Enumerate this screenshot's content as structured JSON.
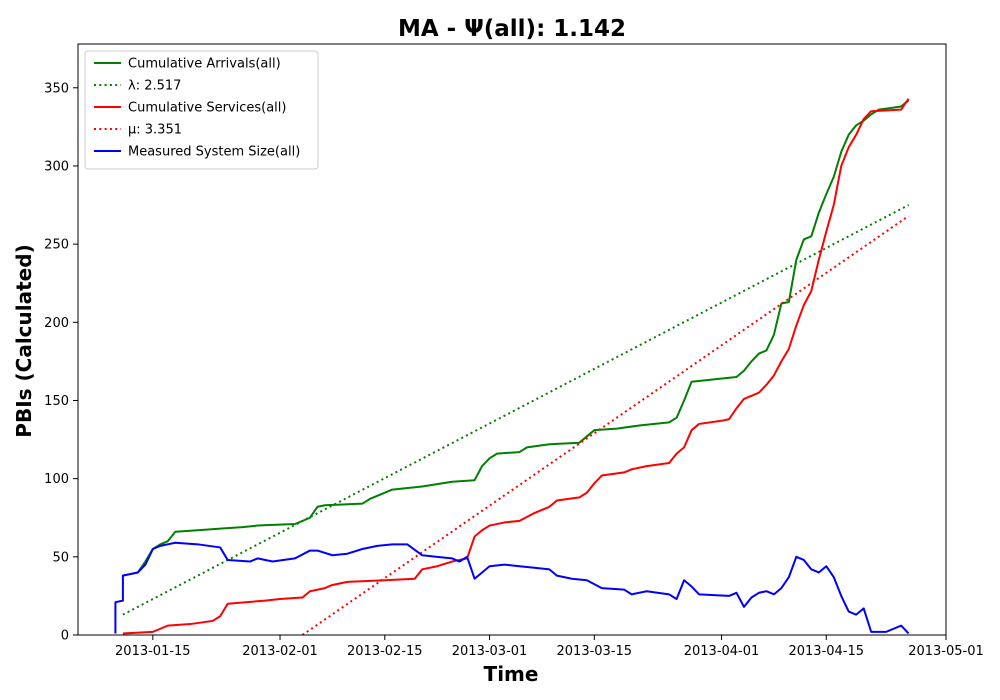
{
  "chart_data": {
    "type": "line",
    "title": "MA -  Ψ(all): 1.142",
    "xlabel": "Time",
    "ylabel": "PBIs (Calculated)",
    "xlim": [
      "2013-01-05",
      "2013-05-01"
    ],
    "ylim": [
      0,
      378
    ],
    "x_ticks": [
      "2013-01-15",
      "2013-02-01",
      "2013-02-15",
      "2013-03-01",
      "2013-03-15",
      "2013-04-01",
      "2013-04-15",
      "2013-05-01"
    ],
    "y_ticks": [
      0,
      50,
      100,
      150,
      200,
      250,
      300,
      350
    ],
    "grid": false,
    "legend_position": "top-left",
    "series": [
      {
        "name": "Cumulative Arrivals(all)",
        "style": "solid",
        "color": "#008000",
        "points": [
          [
            "2013-01-11",
            38
          ],
          [
            "2013-01-13",
            40
          ],
          [
            "2013-01-14",
            47
          ],
          [
            "2013-01-15",
            55
          ],
          [
            "2013-01-16",
            58
          ],
          [
            "2013-01-17",
            60
          ],
          [
            "2013-01-18",
            66
          ],
          [
            "2013-01-21",
            67
          ],
          [
            "2013-01-24",
            68
          ],
          [
            "2013-01-27",
            69
          ],
          [
            "2013-01-29",
            70
          ],
          [
            "2013-02-03",
            71
          ],
          [
            "2013-02-05",
            75
          ],
          [
            "2013-02-06",
            82
          ],
          [
            "2013-02-07",
            83
          ],
          [
            "2013-02-12",
            84
          ],
          [
            "2013-02-13",
            87
          ],
          [
            "2013-02-14",
            89
          ],
          [
            "2013-02-16",
            93
          ],
          [
            "2013-02-20",
            95
          ],
          [
            "2013-02-24",
            98
          ],
          [
            "2013-02-27",
            99
          ],
          [
            "2013-02-28",
            108
          ],
          [
            "2013-03-01",
            113
          ],
          [
            "2013-03-02",
            116
          ],
          [
            "2013-03-05",
            117
          ],
          [
            "2013-03-06",
            120
          ],
          [
            "2013-03-09",
            122
          ],
          [
            "2013-03-13",
            123
          ],
          [
            "2013-03-15",
            131
          ],
          [
            "2013-03-18",
            132
          ],
          [
            "2013-03-21",
            134
          ],
          [
            "2013-03-25",
            136
          ],
          [
            "2013-03-26",
            139
          ],
          [
            "2013-03-27",
            150
          ],
          [
            "2013-03-28",
            162
          ],
          [
            "2013-04-03",
            165
          ],
          [
            "2013-04-04",
            169
          ],
          [
            "2013-04-05",
            175
          ],
          [
            "2013-04-06",
            180
          ],
          [
            "2013-04-07",
            182
          ],
          [
            "2013-04-08",
            192
          ],
          [
            "2013-04-09",
            212
          ],
          [
            "2013-04-10",
            213
          ],
          [
            "2013-04-11",
            240
          ],
          [
            "2013-04-12",
            253
          ],
          [
            "2013-04-13",
            255
          ],
          [
            "2013-04-14",
            270
          ],
          [
            "2013-04-15",
            282
          ],
          [
            "2013-04-16",
            293
          ],
          [
            "2013-04-17",
            309
          ],
          [
            "2013-04-18",
            320
          ],
          [
            "2013-04-19",
            326
          ],
          [
            "2013-04-20",
            329
          ],
          [
            "2013-04-21",
            333
          ],
          [
            "2013-04-22",
            336
          ],
          [
            "2013-04-25",
            338
          ],
          [
            "2013-04-26",
            342
          ]
        ]
      },
      {
        "name": "λ: 2.517",
        "style": "dotted",
        "color": "#008000",
        "points": [
          [
            "2013-01-11",
            13
          ],
          [
            "2013-04-26",
            275
          ]
        ]
      },
      {
        "name": "Cumulative Services(all)",
        "style": "solid",
        "color": "#ff0000",
        "points": [
          [
            "2013-01-11",
            1
          ],
          [
            "2013-01-15",
            2
          ],
          [
            "2013-01-16",
            4
          ],
          [
            "2013-01-17",
            6
          ],
          [
            "2013-01-20",
            7
          ],
          [
            "2013-01-23",
            9
          ],
          [
            "2013-01-24",
            12
          ],
          [
            "2013-01-25",
            20
          ],
          [
            "2013-01-30",
            22
          ],
          [
            "2013-02-01",
            23
          ],
          [
            "2013-02-04",
            24
          ],
          [
            "2013-02-05",
            28
          ],
          [
            "2013-02-07",
            30
          ],
          [
            "2013-02-08",
            32
          ],
          [
            "2013-02-10",
            34
          ],
          [
            "2013-02-15",
            35
          ],
          [
            "2013-02-19",
            36
          ],
          [
            "2013-02-20",
            42
          ],
          [
            "2013-02-22",
            44
          ],
          [
            "2013-02-24",
            47
          ],
          [
            "2013-02-26",
            49
          ],
          [
            "2013-02-27",
            63
          ],
          [
            "2013-02-28",
            67
          ],
          [
            "2013-03-01",
            70
          ],
          [
            "2013-03-03",
            72
          ],
          [
            "2013-03-05",
            73
          ],
          [
            "2013-03-07",
            78
          ],
          [
            "2013-03-09",
            82
          ],
          [
            "2013-03-10",
            86
          ],
          [
            "2013-03-13",
            88
          ],
          [
            "2013-03-14",
            91
          ],
          [
            "2013-03-15",
            97
          ],
          [
            "2013-03-16",
            102
          ],
          [
            "2013-03-19",
            104
          ],
          [
            "2013-03-20",
            106
          ],
          [
            "2013-03-22",
            108
          ],
          [
            "2013-03-25",
            110
          ],
          [
            "2013-03-26",
            116
          ],
          [
            "2013-03-27",
            120
          ],
          [
            "2013-03-28",
            131
          ],
          [
            "2013-03-29",
            135
          ],
          [
            "2013-04-01",
            137
          ],
          [
            "2013-04-02",
            138
          ],
          [
            "2013-04-03",
            145
          ],
          [
            "2013-04-04",
            151
          ],
          [
            "2013-04-05",
            153
          ],
          [
            "2013-04-06",
            155
          ],
          [
            "2013-04-07",
            160
          ],
          [
            "2013-04-08",
            166
          ],
          [
            "2013-04-09",
            175
          ],
          [
            "2013-04-10",
            183
          ],
          [
            "2013-04-11",
            198
          ],
          [
            "2013-04-12",
            211
          ],
          [
            "2013-04-13",
            220
          ],
          [
            "2013-04-14",
            240
          ],
          [
            "2013-04-15",
            258
          ],
          [
            "2013-04-16",
            275
          ],
          [
            "2013-04-17",
            300
          ],
          [
            "2013-04-18",
            312
          ],
          [
            "2013-04-19",
            320
          ],
          [
            "2013-04-20",
            330
          ],
          [
            "2013-04-21",
            335
          ],
          [
            "2013-04-25",
            336
          ],
          [
            "2013-04-26",
            343
          ]
        ]
      },
      {
        "name": "μ: 3.351",
        "style": "dotted",
        "color": "#ff0000",
        "points": [
          [
            "2013-02-04",
            0
          ],
          [
            "2013-04-26",
            268
          ]
        ]
      },
      {
        "name": "Measured System Size(all)",
        "style": "solid",
        "color": "#0000ff",
        "points": [
          [
            "2013-01-10",
            1
          ],
          [
            "2013-01-10",
            21
          ],
          [
            "2013-01-11",
            22
          ],
          [
            "2013-01-11",
            38
          ],
          [
            "2013-01-13",
            40
          ],
          [
            "2013-01-14",
            45
          ],
          [
            "2013-01-15",
            55
          ],
          [
            "2013-01-16",
            57
          ],
          [
            "2013-01-17",
            58
          ],
          [
            "2013-01-18",
            59
          ],
          [
            "2013-01-21",
            58
          ],
          [
            "2013-01-24",
            56
          ],
          [
            "2013-01-25",
            48
          ],
          [
            "2013-01-28",
            47
          ],
          [
            "2013-01-29",
            49
          ],
          [
            "2013-01-31",
            47
          ],
          [
            "2013-02-03",
            49
          ],
          [
            "2013-02-05",
            54
          ],
          [
            "2013-02-06",
            54
          ],
          [
            "2013-02-08",
            51
          ],
          [
            "2013-02-10",
            52
          ],
          [
            "2013-02-12",
            55
          ],
          [
            "2013-02-14",
            57
          ],
          [
            "2013-02-16",
            58
          ],
          [
            "2013-02-18",
            58
          ],
          [
            "2013-02-20",
            51
          ],
          [
            "2013-02-22",
            50
          ],
          [
            "2013-02-24",
            49
          ],
          [
            "2013-02-25",
            47
          ],
          [
            "2013-02-26",
            50
          ],
          [
            "2013-02-27",
            36
          ],
          [
            "2013-02-28",
            40
          ],
          [
            "2013-03-01",
            44
          ],
          [
            "2013-03-03",
            45
          ],
          [
            "2013-03-05",
            44
          ],
          [
            "2013-03-07",
            43
          ],
          [
            "2013-03-09",
            42
          ],
          [
            "2013-03-10",
            38
          ],
          [
            "2013-03-12",
            36
          ],
          [
            "2013-03-14",
            35
          ],
          [
            "2013-03-16",
            30
          ],
          [
            "2013-03-19",
            29
          ],
          [
            "2013-03-20",
            26
          ],
          [
            "2013-03-22",
            28
          ],
          [
            "2013-03-25",
            26
          ],
          [
            "2013-03-26",
            23
          ],
          [
            "2013-03-27",
            35
          ],
          [
            "2013-03-28",
            31
          ],
          [
            "2013-03-29",
            26
          ],
          [
            "2013-04-02",
            25
          ],
          [
            "2013-04-03",
            27
          ],
          [
            "2013-04-04",
            18
          ],
          [
            "2013-04-05",
            24
          ],
          [
            "2013-04-06",
            27
          ],
          [
            "2013-04-07",
            28
          ],
          [
            "2013-04-08",
            26
          ],
          [
            "2013-04-09",
            30
          ],
          [
            "2013-04-10",
            37
          ],
          [
            "2013-04-11",
            50
          ],
          [
            "2013-04-12",
            48
          ],
          [
            "2013-04-13",
            42
          ],
          [
            "2013-04-14",
            40
          ],
          [
            "2013-04-15",
            44
          ],
          [
            "2013-04-16",
            37
          ],
          [
            "2013-04-17",
            25
          ],
          [
            "2013-04-18",
            15
          ],
          [
            "2013-04-19",
            13
          ],
          [
            "2013-04-20",
            17
          ],
          [
            "2013-04-21",
            2
          ],
          [
            "2013-04-23",
            2
          ],
          [
            "2013-04-25",
            6
          ],
          [
            "2013-04-26",
            1
          ]
        ]
      }
    ]
  }
}
